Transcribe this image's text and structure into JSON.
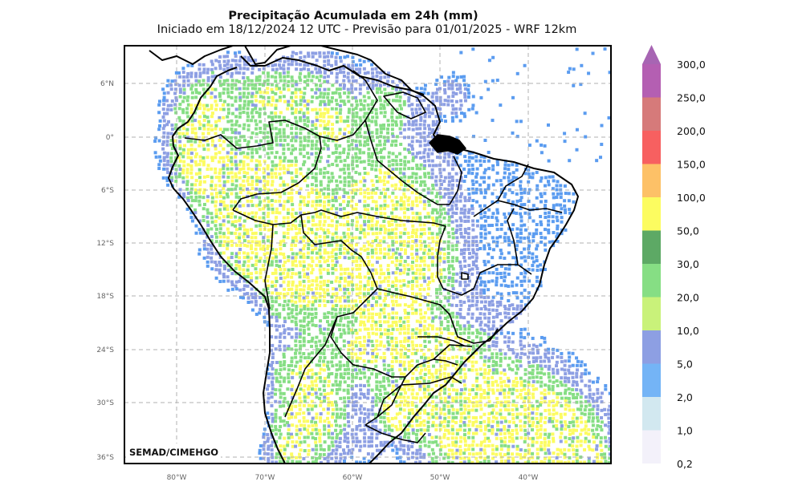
{
  "header": {
    "title": "Precipitação Acumulada em 24h (mm)",
    "subtitle": "Iniciado em 18/12/2024 12 UTC - Previsão para 01/01/2025 - WRF 12km"
  },
  "map": {
    "credit": "SEMAD/CIMEHGO",
    "lat_labels": [
      "6°N",
      "0°",
      "6°S",
      "12°S",
      "18°S",
      "24°S",
      "30°S",
      "36°S"
    ],
    "lon_labels": [
      "80°W",
      "70°W",
      "60°W",
      "50°W",
      "40°W"
    ],
    "gridlines": true,
    "gridline_style": "dashed"
  },
  "legend": {
    "unit": "mm",
    "levels": [
      {
        "label": "0,2",
        "color": "#f3f1fa"
      },
      {
        "label": "1,0",
        "color": "#d2e8f0"
      },
      {
        "label": "2,0",
        "color": "#74b4f6"
      },
      {
        "label": "5,0",
        "color": "#8d9fe3"
      },
      {
        "label": "10,0",
        "color": "#c9f27a"
      },
      {
        "label": "20,0",
        "color": "#86de84"
      },
      {
        "label": "30,0",
        "color": "#5da965"
      },
      {
        "label": "50,0",
        "color": "#fcfc60"
      },
      {
        "label": "100,0",
        "color": "#fdc167"
      },
      {
        "label": "150,0",
        "color": "#f76060"
      },
      {
        "label": "200,0",
        "color": "#d67a7a"
      },
      {
        "label": "250,0",
        "color": "#b45fb2"
      },
      {
        "label": "300,0",
        "color": "#a765b3"
      }
    ],
    "extend_arrow_color": "#a765b3"
  },
  "colors": {
    "drizzle": "#5b9cf0",
    "light": "#8d9fe3",
    "moderate": "#86de84",
    "heavy": "#fcfc60",
    "borders": "#000000",
    "grid": "#b0b0b0"
  }
}
